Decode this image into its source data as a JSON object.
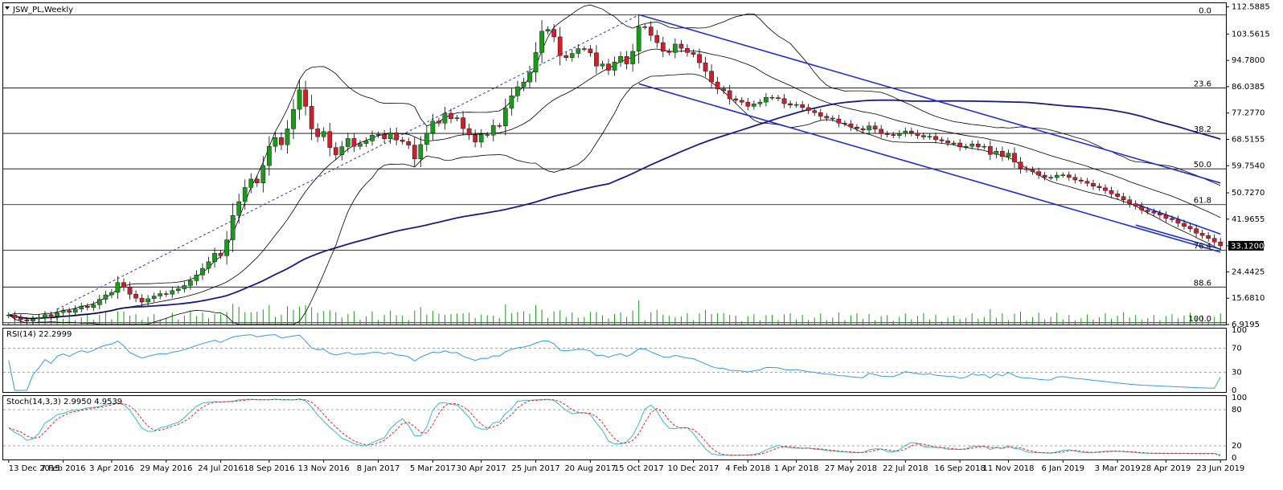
{
  "colors": {
    "background": "#ffffff",
    "bull_candle": "#1a9a1a",
    "bear_candle": "#d21e2a",
    "volume": "#1a9a1a",
    "bollinger": "#000000",
    "long_ma": "#1a1a8c",
    "channel": "#1f2fd2",
    "fib": "#000000",
    "trend_dotted": "#2233cc",
    "rsi": "#3399ee",
    "stoch_main": "#33bbcc",
    "stoch_signal": "#ee2222",
    "last_price_bg": "#000000",
    "last_price_fg": "#ffffff"
  },
  "header": {
    "symbol_label": "JSW_PL,Weekly",
    "dropdown_icon": "triangle-down-icon"
  },
  "chart_data": [
    {
      "type": "candlestick",
      "title": "JSW_PL,Weekly",
      "timeframe": "Weekly",
      "ylim": [
        6.9195,
        113.8
      ],
      "price_axis_labels": [
        "112.5885",
        "103.5615",
        "94.7800",
        "86.0385",
        "77.2770",
        "68.5155",
        "59.7540",
        "50.7270",
        "41.9655",
        "33.1200",
        "24.4425",
        "15.6810",
        "6.9195"
      ],
      "last_price": "33.1200",
      "x_axis_labels": [
        "13 Dec 2015",
        "7 Feb 2016",
        "3 Apr 2016",
        "29 May 2016",
        "24 Jul 2016",
        "18 Sep 2016",
        "13 Nov 2016",
        "8 Jan 2017",
        "5 Mar 2017",
        "30 Apr 2017",
        "25 Jun 2017",
        "20 Aug 2017",
        "15 Oct 2017",
        "10 Dec 2017",
        "4 Feb 2018",
        "1 Apr 2018",
        "27 May 2018",
        "22 Jul 2018",
        "16 Sep 2018",
        "11 Nov 2018",
        "6 Jan 2019",
        "3 Mar 2019",
        "28 Apr 2019",
        "23 Jun 2019"
      ],
      "fibonacci_levels": [
        {
          "label": "0.0",
          "price": 109.9
        },
        {
          "label": "23.6",
          "price": 85.6
        },
        {
          "label": "38.2",
          "price": 70.5
        },
        {
          "label": "50.0",
          "price": 58.7
        },
        {
          "label": "61.8",
          "price": 46.8
        },
        {
          "label": "76.4",
          "price": 31.6
        },
        {
          "label": "88.6",
          "price": 19.4
        },
        {
          "label": "100.0",
          "price": 7.5
        }
      ],
      "close_prices": [
        10.1,
        9.2,
        8.5,
        8.1,
        8.8,
        9.3,
        10.2,
        9.6,
        10.9,
        11.5,
        11.0,
        12.1,
        13.0,
        12.6,
        13.5,
        15.3,
        16.8,
        17.6,
        20.9,
        19.4,
        17.0,
        15.7,
        14.4,
        15.5,
        16.4,
        17.2,
        17.0,
        18.2,
        18.8,
        19.9,
        21.5,
        23.4,
        25.6,
        27.8,
        30.6,
        29.8,
        35.1,
        43.2,
        47.8,
        52.5,
        55.3,
        54.0,
        59.8,
        66.2,
        69.1,
        66.7,
        72.0,
        78.5,
        85.0,
        79.5,
        72.0,
        69.4,
        71.1,
        65.8,
        63.4,
        66.1,
        68.8,
        66.2,
        67.1,
        68.0,
        69.9,
        70.2,
        68.7,
        70.7,
        68.3,
        67.8,
        66.6,
        62.0,
        66.8,
        70.6,
        74.6,
        73.9,
        77.2,
        75.4,
        75.7,
        72.1,
        70.0,
        67.6,
        70.1,
        69.9,
        73.1,
        73.0,
        78.9,
        83.0,
        86.0,
        87.6,
        90.9,
        97.4,
        104.5,
        105.1,
        102.6,
        96.4,
        95.7,
        97.1,
        98.7,
        98.6,
        97.3,
        92.9,
        93.6,
        91.5,
        94.2,
        96.1,
        93.6,
        97.8,
        106.0,
        105.9,
        103.1,
        100.7,
        97.8,
        97.4,
        100.2,
        98.8,
        97.4,
        96.8,
        94.0,
        91.2,
        87.6,
        85.3,
        84.7,
        82.0,
        81.5,
        80.9,
        79.5,
        80.3,
        80.9,
        82.5,
        82.4,
        82.1,
        80.4,
        79.9,
        80.1,
        79.1,
        78.1,
        77.4,
        76.2,
        75.6,
        75.3,
        73.9,
        73.7,
        72.6,
        72.1,
        71.6,
        73.0,
        71.9,
        70.4,
        70.1,
        69.8,
        70.5,
        71.3,
        70.6,
        69.8,
        69.3,
        69.5,
        68.4,
        68.0,
        67.3,
        67.3,
        66.0,
        66.2,
        67.0,
        66.0,
        66.2,
        63.5,
        64.6,
        62.8,
        63.9,
        61.0,
        58.8,
        58.4,
        57.8,
        56.6,
        55.9,
        55.8,
        56.6,
        56.7,
        55.9,
        55.0,
        54.6,
        53.9,
        52.9,
        52.4,
        51.5,
        50.4,
        49.5,
        48.4,
        47.1,
        46.3,
        45.0,
        44.5,
        44.0,
        43.3,
        42.2,
        41.8,
        40.6,
        39.6,
        38.8,
        37.3,
        36.5,
        35.6,
        34.4,
        33.1
      ],
      "overlays": [
        "Bollinger Bands",
        "Moving Average",
        "Descending channel",
        "Fibonacci retracement",
        "Dotted trendline",
        "Volume"
      ]
    },
    {
      "type": "line",
      "title": "RSI(14) 22.2999",
      "indicator": "RSI(14)",
      "value": 22.2999,
      "ylim": [
        0,
        100
      ],
      "y_axis_labels": [
        "100",
        "70",
        "30",
        "0"
      ],
      "levels": [
        70,
        30
      ]
    },
    {
      "type": "line",
      "title": "Stoch(14,3,3) 2.9950 4.9539",
      "indicator": "Stoch(14,3,3)",
      "main": 2.995,
      "signal": 4.9539,
      "ylim": [
        0,
        100
      ],
      "y_axis_labels": [
        "100",
        "80",
        "20",
        "0"
      ],
      "levels": [
        80,
        20
      ]
    }
  ]
}
